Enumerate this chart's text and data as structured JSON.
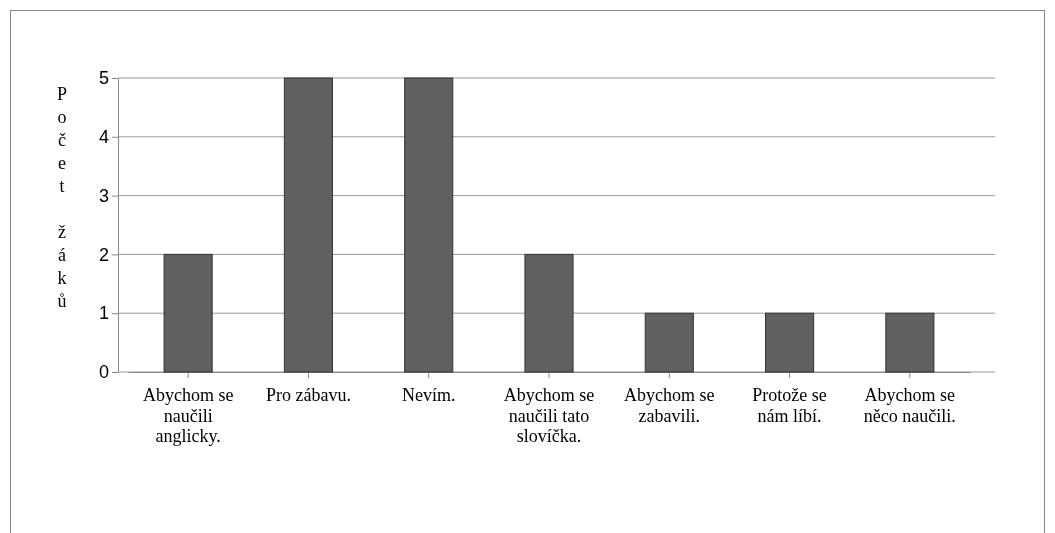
{
  "chart_data": {
    "type": "bar",
    "ylabel": "Počet žáků",
    "categories": [
      "Abychom se naučili anglicky.",
      "Pro zábavu.",
      "Nevím.",
      "Abychom se naučili tato slovíčka.",
      "Abychom se zabavili.",
      "Protože se nám líbí.",
      "Abychom se něco naučili."
    ],
    "values": [
      2,
      5,
      5,
      2,
      1,
      1,
      1
    ],
    "color": "#606060",
    "ylim": [
      0,
      5
    ],
    "yticks": [
      0,
      1,
      2,
      3,
      4,
      5
    ],
    "grid": "y"
  }
}
